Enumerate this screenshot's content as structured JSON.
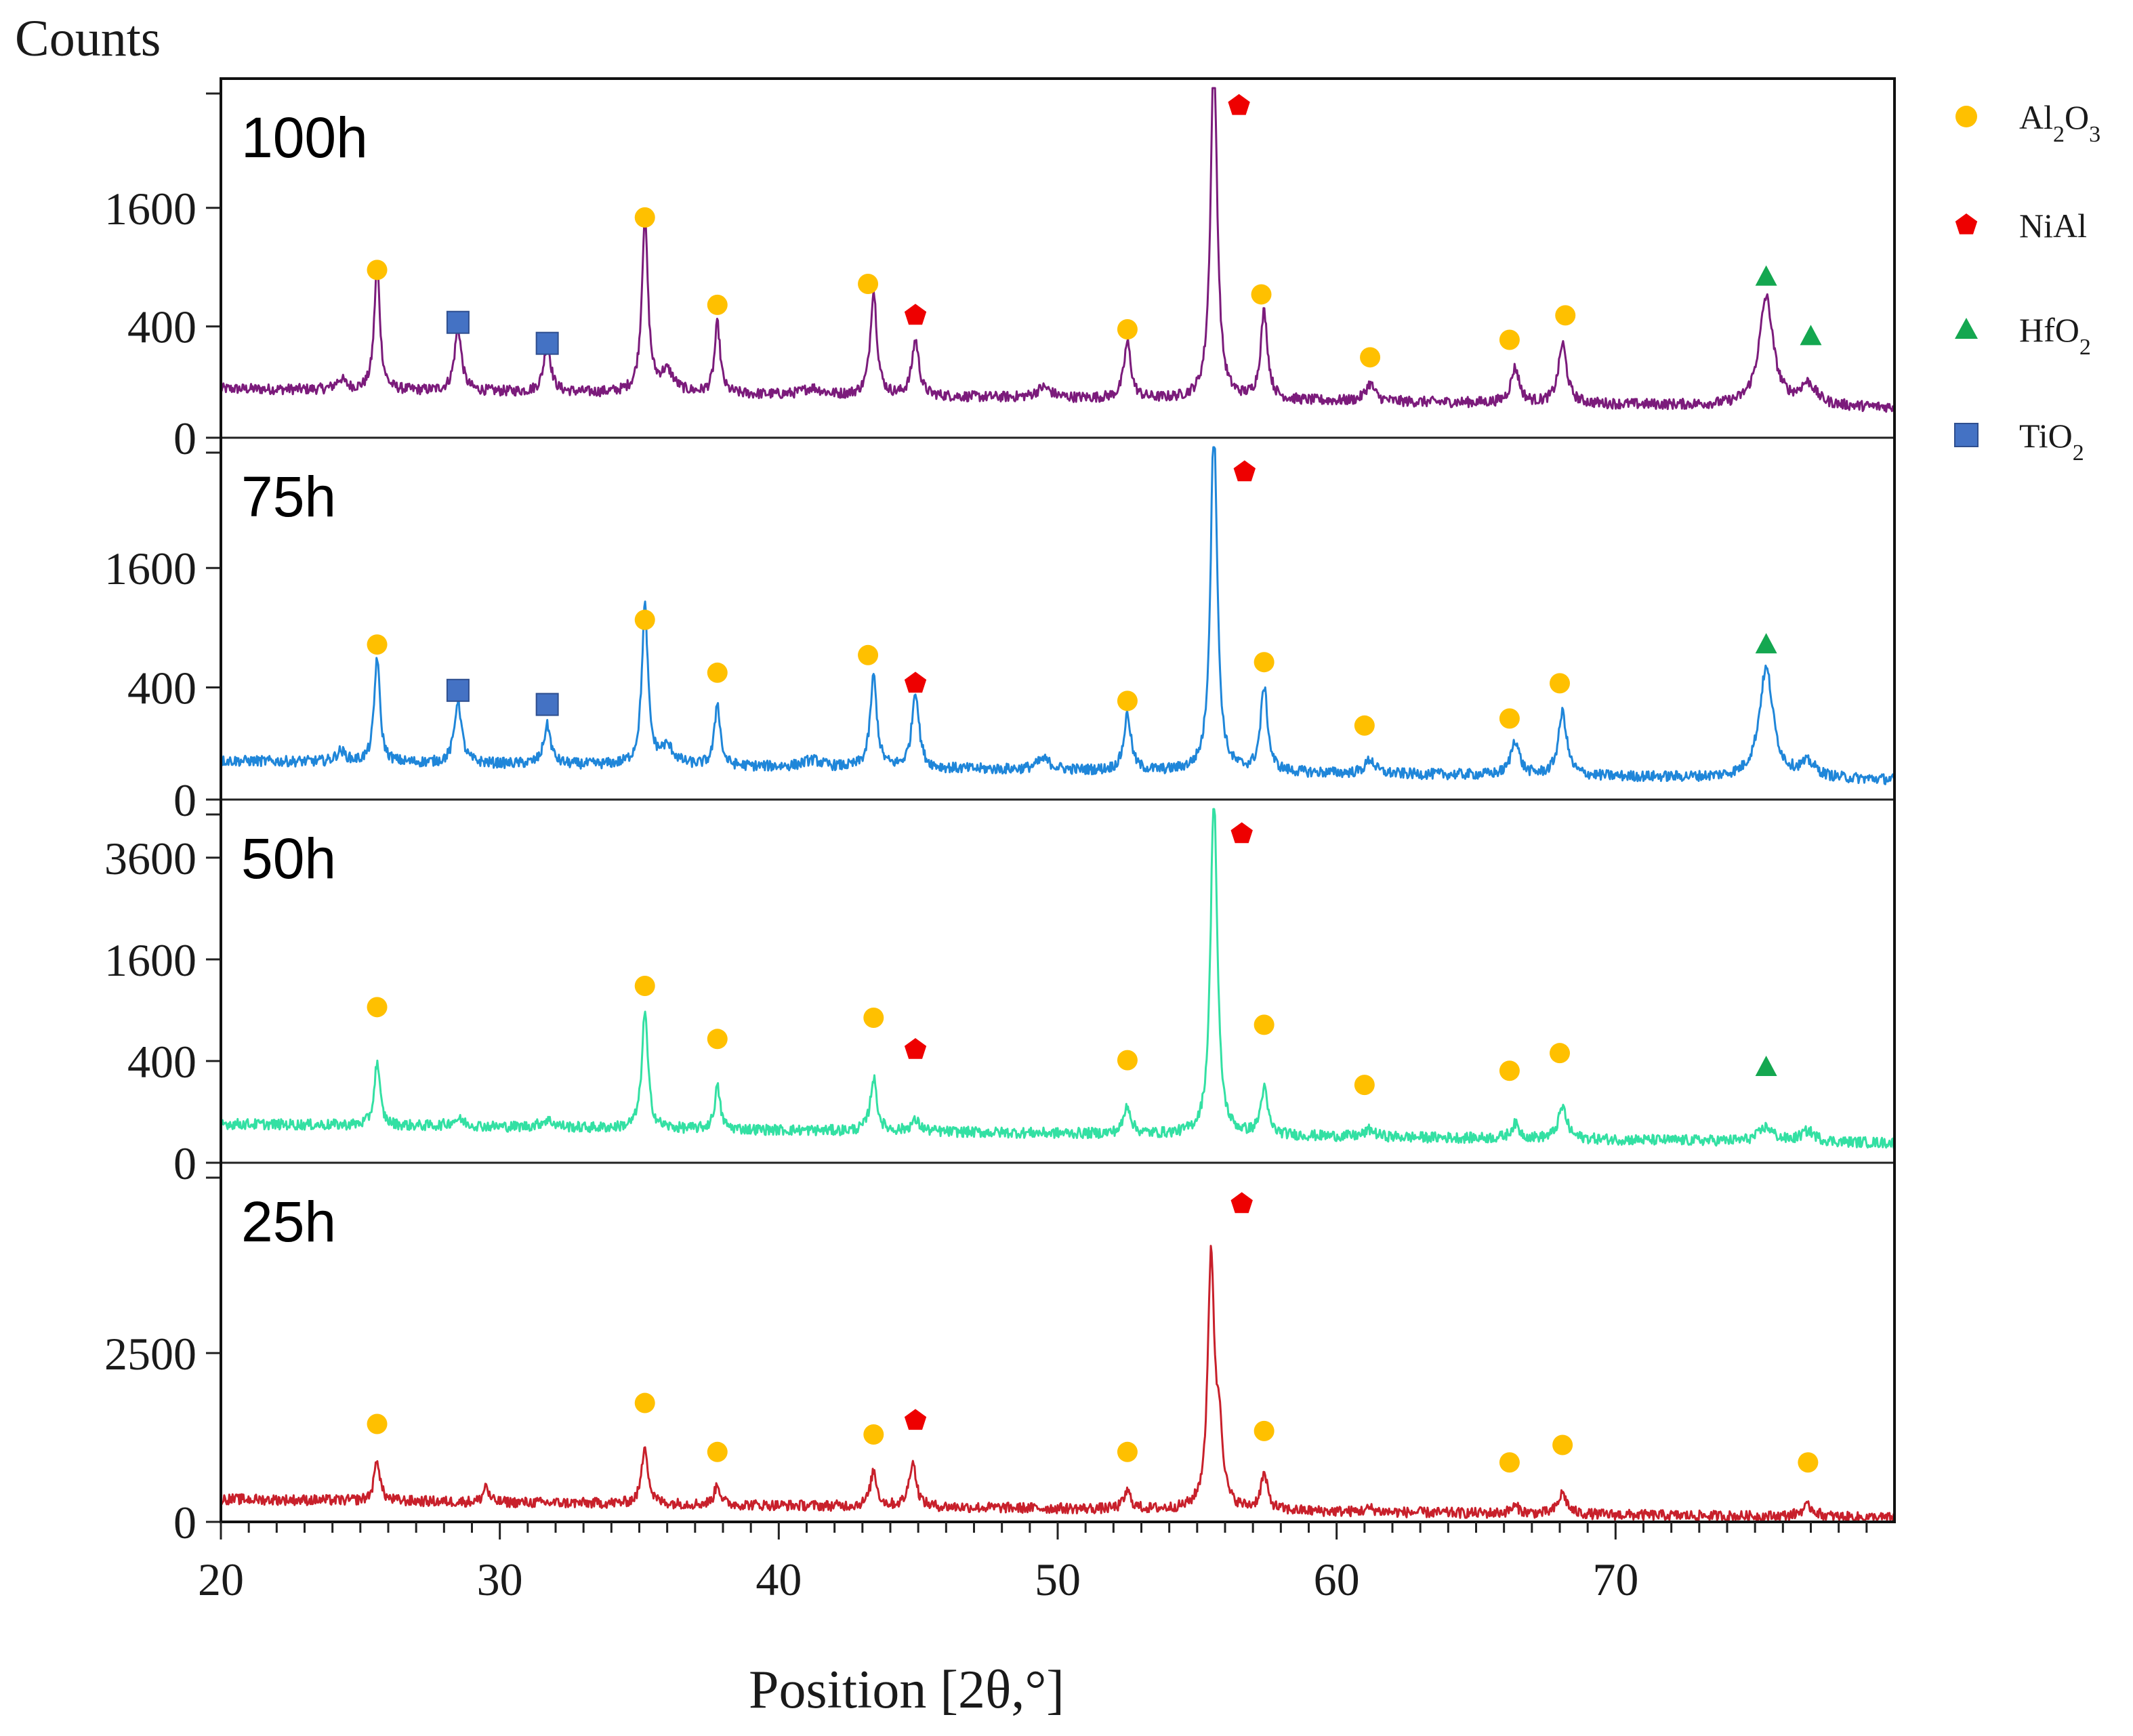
{
  "chart_data": {
    "type": "line",
    "title": "",
    "xlabel": "Position [2θ,°]",
    "ylabel": "Counts",
    "xlim": [
      20,
      80
    ],
    "x_ticks": [
      "20",
      "30",
      "40",
      "50",
      "60",
      "70"
    ],
    "colors": {
      "100h": "#7b1b7b",
      "75h": "#1f86d9",
      "50h": "#33e0a3",
      "25h": "#c8202b",
      "Al2O3": "#ffc000",
      "NiAl": "#ee0000",
      "HfO2": "#14a750",
      "TiO2": "#4472c4"
    },
    "legend": [
      {
        "key": "Al2O3",
        "symbol": "circle",
        "base": "Al",
        "sub1": "2",
        "mid": "O",
        "sub2": "3"
      },
      {
        "key": "NiAl",
        "symbol": "pentagon",
        "base": "NiAl",
        "sub1": "",
        "mid": "",
        "sub2": ""
      },
      {
        "key": "HfO2",
        "symbol": "triangle",
        "base": "HfO",
        "sub1": "2",
        "mid": "",
        "sub2": ""
      },
      {
        "key": "TiO2",
        "symbol": "square",
        "base": "TiO",
        "sub1": "2",
        "mid": "",
        "sub2": ""
      }
    ],
    "series": [
      {
        "name": "100h",
        "label": "100h",
        "y_ticks": [
          "0",
          "400",
          "1600"
        ],
        "baseline": 0.14,
        "peaks": [
          [
            24.3,
            0.03,
            0.2
          ],
          [
            25.6,
            0.36,
            0.12
          ],
          [
            28.5,
            0.18,
            0.15
          ],
          [
            31.7,
            0.14,
            0.15
          ],
          [
            35.2,
            0.5,
            0.13
          ],
          [
            36.0,
            0.06,
            0.3
          ],
          [
            37.8,
            0.2,
            0.12
          ],
          [
            41.2,
            0.02,
            0.4
          ],
          [
            43.4,
            0.3,
            0.14
          ],
          [
            44.9,
            0.16,
            0.15
          ],
          [
            49.5,
            0.03,
            0.3
          ],
          [
            52.5,
            0.16,
            0.15
          ],
          [
            55.6,
            1.0,
            0.14
          ],
          [
            57.4,
            0.25,
            0.15
          ],
          [
            61.2,
            0.05,
            0.2
          ],
          [
            66.4,
            0.1,
            0.18
          ],
          [
            68.1,
            0.17,
            0.18
          ],
          [
            75.4,
            0.31,
            0.3
          ],
          [
            76.9,
            0.06,
            0.35
          ]
        ],
        "markers": [
          {
            "phase": "Al2O3",
            "x": 25.6,
            "y": 0.48
          },
          {
            "phase": "TiO2",
            "x": 28.5,
            "y": 0.33
          },
          {
            "phase": "TiO2",
            "x": 31.7,
            "y": 0.27
          },
          {
            "phase": "Al2O3",
            "x": 35.2,
            "y": 0.63
          },
          {
            "phase": "Al2O3",
            "x": 37.8,
            "y": 0.38
          },
          {
            "phase": "Al2O3",
            "x": 43.2,
            "y": 0.44
          },
          {
            "phase": "NiAl",
            "x": 44.9,
            "y": 0.35
          },
          {
            "phase": "Al2O3",
            "x": 52.5,
            "y": 0.31
          },
          {
            "phase": "NiAl",
            "x": 56.5,
            "y": 0.95
          },
          {
            "phase": "Al2O3",
            "x": 57.3,
            "y": 0.41
          },
          {
            "phase": "Al2O3",
            "x": 61.2,
            "y": 0.23
          },
          {
            "phase": "Al2O3",
            "x": 66.2,
            "y": 0.28
          },
          {
            "phase": "Al2O3",
            "x": 68.2,
            "y": 0.35
          },
          {
            "phase": "HfO2",
            "x": 75.4,
            "y": 0.46
          },
          {
            "phase": "HfO2",
            "x": 77.0,
            "y": 0.29
          }
        ]
      },
      {
        "name": "75h",
        "label": "75h",
        "y_ticks": [
          "0",
          "400",
          "1600"
        ],
        "baseline": 0.11,
        "peaks": [
          [
            24.3,
            0.03,
            0.2
          ],
          [
            25.6,
            0.3,
            0.12
          ],
          [
            28.5,
            0.18,
            0.15
          ],
          [
            31.7,
            0.11,
            0.15
          ],
          [
            35.2,
            0.45,
            0.13
          ],
          [
            36.0,
            0.05,
            0.3
          ],
          [
            37.8,
            0.18,
            0.12
          ],
          [
            41.2,
            0.02,
            0.4
          ],
          [
            43.4,
            0.26,
            0.14
          ],
          [
            44.9,
            0.22,
            0.15
          ],
          [
            49.5,
            0.03,
            0.3
          ],
          [
            52.5,
            0.16,
            0.15
          ],
          [
            55.6,
            1.0,
            0.14
          ],
          [
            57.4,
            0.24,
            0.15
          ],
          [
            61.2,
            0.04,
            0.2
          ],
          [
            66.4,
            0.1,
            0.18
          ],
          [
            68.1,
            0.18,
            0.18
          ],
          [
            75.4,
            0.31,
            0.3
          ],
          [
            76.9,
            0.04,
            0.35
          ]
        ],
        "markers": [
          {
            "phase": "Al2O3",
            "x": 25.6,
            "y": 0.44
          },
          {
            "phase": "TiO2",
            "x": 28.5,
            "y": 0.31
          },
          {
            "phase": "TiO2",
            "x": 31.7,
            "y": 0.27
          },
          {
            "phase": "Al2O3",
            "x": 35.2,
            "y": 0.51
          },
          {
            "phase": "Al2O3",
            "x": 37.8,
            "y": 0.36
          },
          {
            "phase": "Al2O3",
            "x": 43.2,
            "y": 0.41
          },
          {
            "phase": "NiAl",
            "x": 44.9,
            "y": 0.33
          },
          {
            "phase": "Al2O3",
            "x": 52.5,
            "y": 0.28
          },
          {
            "phase": "NiAl",
            "x": 56.7,
            "y": 0.93
          },
          {
            "phase": "Al2O3",
            "x": 57.4,
            "y": 0.39
          },
          {
            "phase": "Al2O3",
            "x": 61.0,
            "y": 0.21
          },
          {
            "phase": "Al2O3",
            "x": 66.2,
            "y": 0.23
          },
          {
            "phase": "Al2O3",
            "x": 68.0,
            "y": 0.33
          },
          {
            "phase": "HfO2",
            "x": 75.4,
            "y": 0.44
          }
        ]
      },
      {
        "name": "50h",
        "label": "50h",
        "y_ticks": [
          "0",
          "400",
          "1600",
          "3600"
        ],
        "baseline": 0.11,
        "peaks": [
          [
            25.6,
            0.18,
            0.12
          ],
          [
            28.5,
            0.02,
            0.3
          ],
          [
            31.7,
            0.02,
            0.3
          ],
          [
            35.2,
            0.33,
            0.13
          ],
          [
            37.8,
            0.12,
            0.12
          ],
          [
            43.4,
            0.15,
            0.14
          ],
          [
            44.9,
            0.03,
            0.2
          ],
          [
            52.5,
            0.08,
            0.15
          ],
          [
            55.6,
            0.98,
            0.14
          ],
          [
            57.4,
            0.13,
            0.15
          ],
          [
            61.2,
            0.02,
            0.2
          ],
          [
            66.4,
            0.04,
            0.18
          ],
          [
            68.1,
            0.09,
            0.18
          ],
          [
            75.4,
            0.04,
            0.3
          ],
          [
            76.9,
            0.03,
            0.3
          ]
        ],
        "markers": [
          {
            "phase": "Al2O3",
            "x": 25.6,
            "y": 0.44
          },
          {
            "phase": "Al2O3",
            "x": 35.2,
            "y": 0.5
          },
          {
            "phase": "Al2O3",
            "x": 37.8,
            "y": 0.35
          },
          {
            "phase": "Al2O3",
            "x": 43.4,
            "y": 0.41
          },
          {
            "phase": "NiAl",
            "x": 44.9,
            "y": 0.32
          },
          {
            "phase": "Al2O3",
            "x": 52.5,
            "y": 0.29
          },
          {
            "phase": "NiAl",
            "x": 56.6,
            "y": 0.93
          },
          {
            "phase": "Al2O3",
            "x": 57.4,
            "y": 0.39
          },
          {
            "phase": "Al2O3",
            "x": 61.0,
            "y": 0.22
          },
          {
            "phase": "Al2O3",
            "x": 66.2,
            "y": 0.26
          },
          {
            "phase": "Al2O3",
            "x": 68.0,
            "y": 0.31
          },
          {
            "phase": "HfO2",
            "x": 75.4,
            "y": 0.27
          }
        ]
      },
      {
        "name": "25h",
        "label": "25h",
        "y_ticks": [
          "0",
          "2500"
        ],
        "baseline": 0.065,
        "peaks": [
          [
            25.6,
            0.12,
            0.12
          ],
          [
            29.5,
            0.05,
            0.1
          ],
          [
            35.2,
            0.17,
            0.13
          ],
          [
            37.8,
            0.06,
            0.12
          ],
          [
            43.4,
            0.1,
            0.14
          ],
          [
            44.8,
            0.13,
            0.15
          ],
          [
            52.5,
            0.05,
            0.15
          ],
          [
            55.5,
            0.72,
            0.14
          ],
          [
            55.8,
            0.2,
            0.14
          ],
          [
            57.4,
            0.1,
            0.15
          ],
          [
            61.2,
            0.01,
            0.2
          ],
          [
            66.4,
            0.02,
            0.2
          ],
          [
            68.1,
            0.06,
            0.18
          ],
          [
            76.9,
            0.03,
            0.3
          ]
        ],
        "markers": [
          {
            "phase": "Al2O3",
            "x": 25.6,
            "y": 0.28
          },
          {
            "phase": "Al2O3",
            "x": 35.2,
            "y": 0.34
          },
          {
            "phase": "Al2O3",
            "x": 37.8,
            "y": 0.2
          },
          {
            "phase": "Al2O3",
            "x": 43.4,
            "y": 0.25
          },
          {
            "phase": "NiAl",
            "x": 44.9,
            "y": 0.29
          },
          {
            "phase": "Al2O3",
            "x": 52.5,
            "y": 0.2
          },
          {
            "phase": "NiAl",
            "x": 56.6,
            "y": 0.91
          },
          {
            "phase": "Al2O3",
            "x": 57.4,
            "y": 0.26
          },
          {
            "phase": "Al2O3",
            "x": 66.2,
            "y": 0.17
          },
          {
            "phase": "Al2O3",
            "x": 68.1,
            "y": 0.22
          },
          {
            "phase": "Al2O3",
            "x": 76.9,
            "y": 0.17
          }
        ]
      }
    ]
  }
}
